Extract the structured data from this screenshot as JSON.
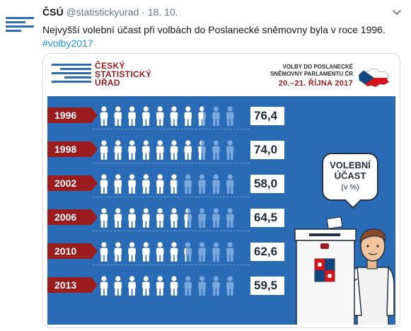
{
  "tweet": {
    "author_name": "ČSÚ",
    "handle": "@statistickyurad",
    "separator": "·",
    "date": "18. 10.",
    "text": "Nejvyšší volební účast při volbách do Poslanecké sněmovny byla v roce 1996.",
    "hashtag": "#volby2017"
  },
  "icons": {
    "avatar": "csu-logo-icon",
    "caret": "chevron-down-icon"
  },
  "infographic": {
    "logo_lines": [
      "ČESKÝ",
      "STATISTICKÝ",
      "ÚŘAD"
    ],
    "election_line1": "VOLBY DO POSLANECKÉ",
    "election_line2": "SNĚMOVNY PARLAMENTU ČR",
    "election_dates": "20.–21. ŘÍJNA 2017",
    "bubble_line1": "VOLEBNÍ",
    "bubble_line2": "ÚČAST",
    "bubble_line3": "(v %)",
    "rows": [
      {
        "year": "1996",
        "value": "76,4",
        "turnout": 76.4
      },
      {
        "year": "1998",
        "value": "74,0",
        "turnout": 74.0
      },
      {
        "year": "2002",
        "value": "58,0",
        "turnout": 58.0
      },
      {
        "year": "2006",
        "value": "64,5",
        "turnout": 64.5
      },
      {
        "year": "2010",
        "value": "62,6",
        "turnout": 62.6
      },
      {
        "year": "2013",
        "value": "59,5",
        "turnout": 59.5
      }
    ]
  },
  "colors": {
    "accent_blue": "#2a6bb5",
    "brand_red": "#9b1c1f",
    "link": "#1b95e0",
    "figure_filled": "#ffffff",
    "figure_empty": "#79a8de"
  }
}
